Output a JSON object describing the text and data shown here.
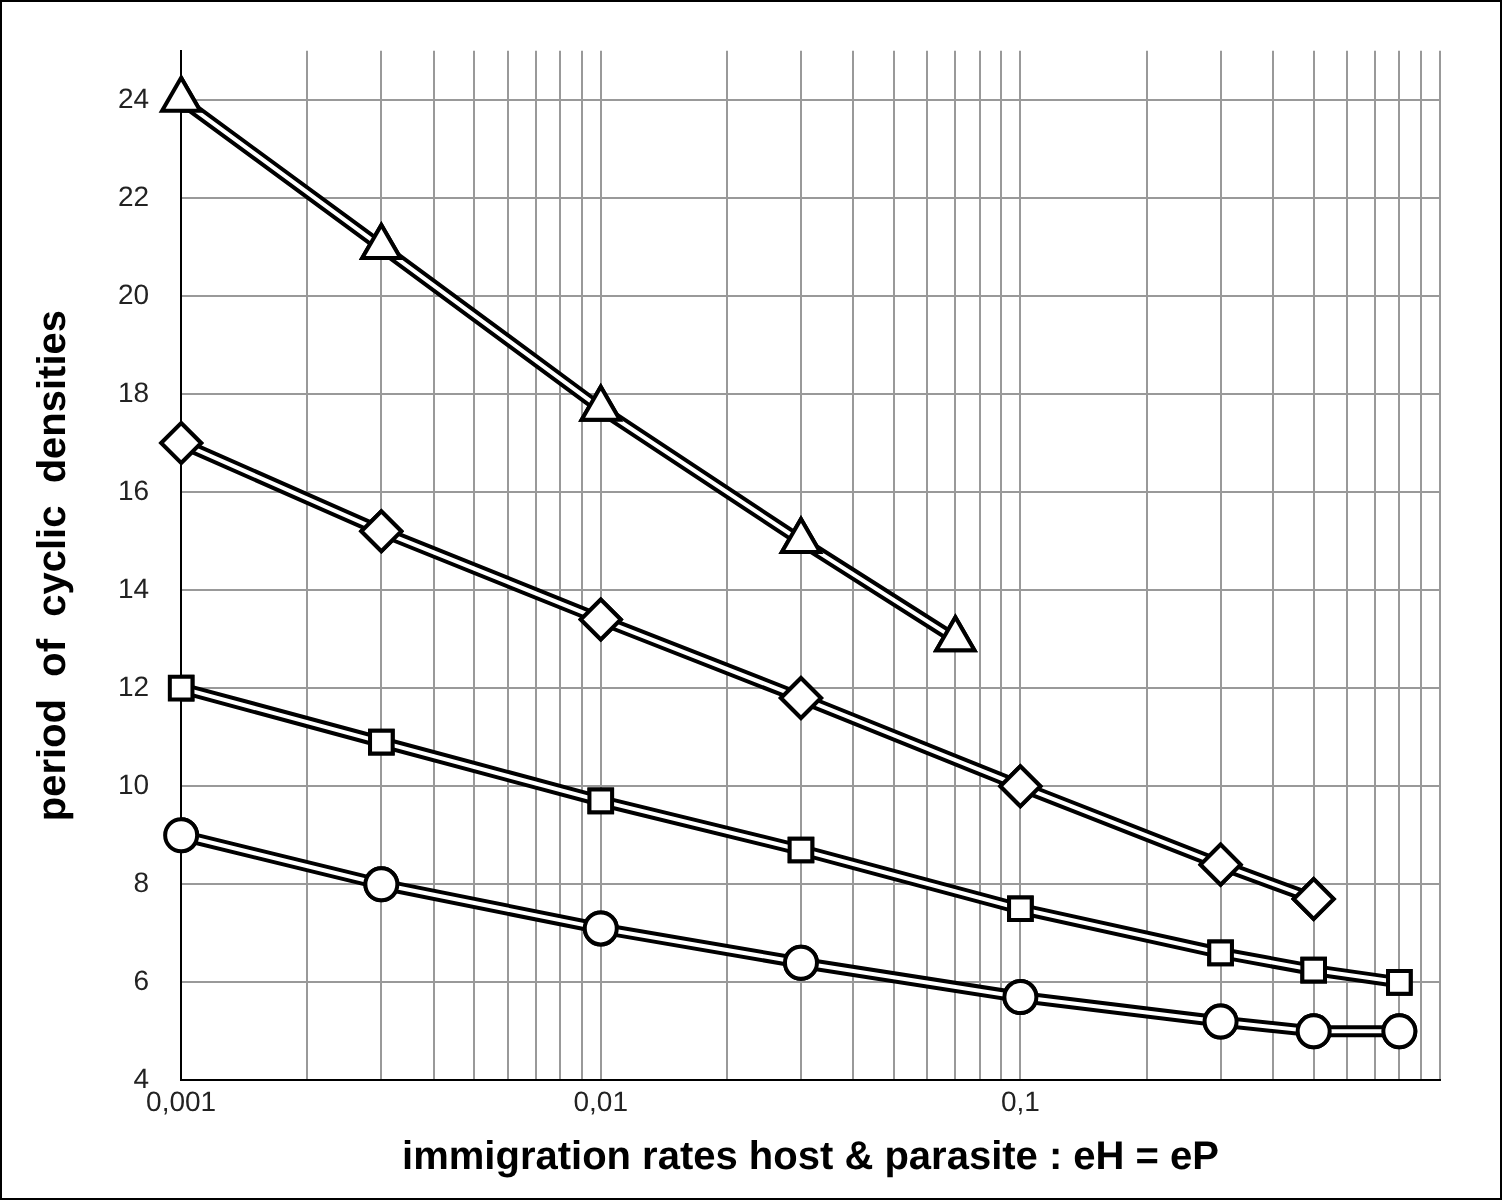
{
  "chart_data": {
    "type": "line",
    "xlabel": "immigration rates host & parasite : eH = eP",
    "ylabel": "period  of  cyclic  densities",
    "log": "x",
    "grid": true,
    "legend": false,
    "line_style": "solid",
    "xlim": [
      0.001,
      1
    ],
    "ylim": [
      4,
      25
    ],
    "xticks": [
      {
        "value": 0.001,
        "label": "0,001"
      },
      {
        "value": 0.002,
        "label": null
      },
      {
        "value": 0.003,
        "label": null
      },
      {
        "value": 0.004,
        "label": null
      },
      {
        "value": 0.005,
        "label": null
      },
      {
        "value": 0.006,
        "label": null
      },
      {
        "value": 0.007,
        "label": null
      },
      {
        "value": 0.008,
        "label": null
      },
      {
        "value": 0.009,
        "label": null
      },
      {
        "value": 0.01,
        "label": "0,01"
      },
      {
        "value": 0.02,
        "label": null
      },
      {
        "value": 0.03,
        "label": null
      },
      {
        "value": 0.04,
        "label": null
      },
      {
        "value": 0.05,
        "label": null
      },
      {
        "value": 0.06,
        "label": null
      },
      {
        "value": 0.07,
        "label": null
      },
      {
        "value": 0.08,
        "label": null
      },
      {
        "value": 0.09,
        "label": null
      },
      {
        "value": 0.1,
        "label": "0,1"
      },
      {
        "value": 0.2,
        "label": null
      },
      {
        "value": 0.3,
        "label": null
      },
      {
        "value": 0.4,
        "label": null
      },
      {
        "value": 0.5,
        "label": null
      },
      {
        "value": 0.6,
        "label": null
      },
      {
        "value": 0.7,
        "label": null
      },
      {
        "value": 0.8,
        "label": null
      },
      {
        "value": 0.9,
        "label": null
      },
      {
        "value": 1,
        "label": null
      }
    ],
    "yticks": [
      4,
      6,
      8,
      10,
      12,
      14,
      16,
      18,
      20,
      22,
      24
    ],
    "series": [
      {
        "color": "#000000",
        "marker": "triangle",
        "x": [
          0.001,
          0.003,
          0.01,
          0.03,
          0.07
        ],
        "values": [
          24,
          21,
          17.7,
          15,
          13
        ]
      },
      {
        "color": "#000000",
        "marker": "diamond",
        "x": [
          0.001,
          0.003,
          0.01,
          0.03,
          0.1,
          0.3,
          0.5
        ],
        "values": [
          17,
          15.2,
          13.4,
          11.8,
          10,
          8.4,
          7.7
        ]
      },
      {
        "color": "#000000",
        "marker": "square",
        "x": [
          0.001,
          0.003,
          0.01,
          0.03,
          0.1,
          0.3,
          0.5,
          0.8
        ],
        "values": [
          12,
          10.9,
          9.7,
          8.7,
          7.5,
          6.6,
          6.25,
          6
        ]
      },
      {
        "color": "#000000",
        "marker": "circle",
        "x": [
          0.001,
          0.003,
          0.01,
          0.03,
          0.1,
          0.3,
          0.5,
          0.8
        ],
        "values": [
          9,
          8,
          7.1,
          6.4,
          5.7,
          5.2,
          5,
          5
        ]
      }
    ]
  }
}
